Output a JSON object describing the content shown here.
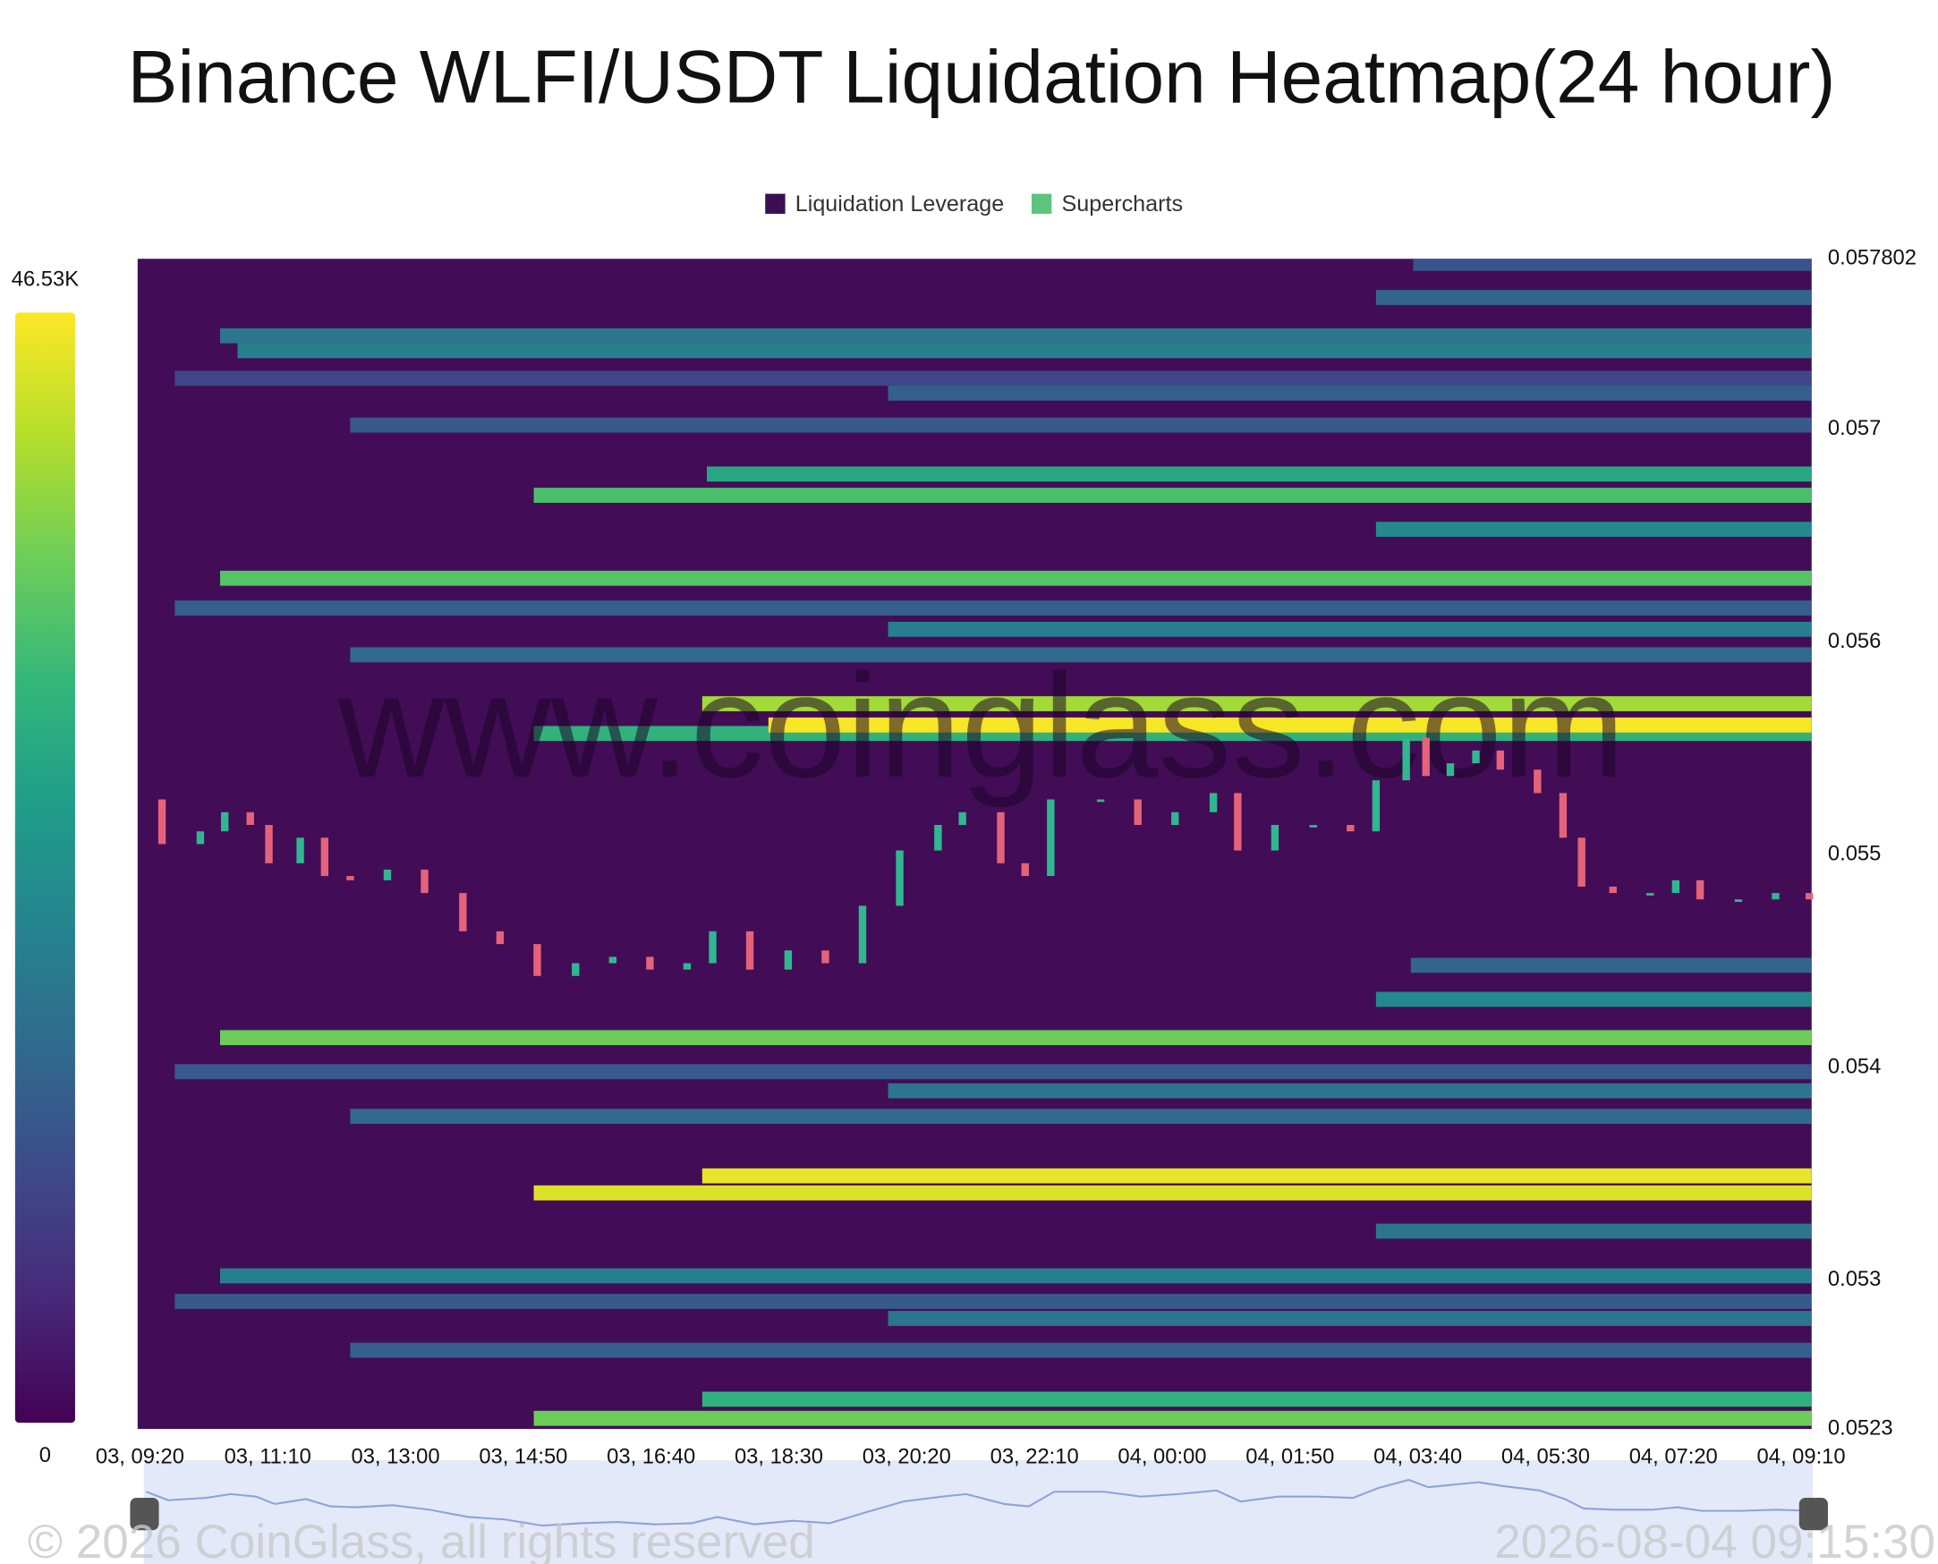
{
  "chart_data": {
    "type": "heatmap",
    "title": "Binance WLFI/USDT Liquidation Heatmap(24 hour)",
    "legend": [
      {
        "name": "Liquidation Leverage",
        "color": "#3b0f53"
      },
      {
        "name": "Supercharts",
        "color": "#5ec47d"
      }
    ],
    "watermark": "www.coinglass.com",
    "copyright": "© 2026 CoinGlass, all rights reserved",
    "timestamp": "2026-08-04 09:15:30",
    "background": "#420d56",
    "up_color": "#2fb890",
    "down_color": "#e4637a",
    "ylim": [
      0.0523,
      0.057802
    ],
    "yticks": [
      0.0523,
      0.053,
      0.054,
      0.055,
      0.056,
      0.057,
      0.057802
    ],
    "xlim": [
      -2,
      1439
    ],
    "xticks": [
      {
        "value": 0,
        "label": "03, 09:20"
      },
      {
        "value": 110,
        "label": "03, 11:10"
      },
      {
        "value": 220,
        "label": "03, 13:00"
      },
      {
        "value": 330,
        "label": "03, 14:50"
      },
      {
        "value": 440,
        "label": "03, 16:40"
      },
      {
        "value": 550,
        "label": "03, 18:30"
      },
      {
        "value": 660,
        "label": "03, 20:20"
      },
      {
        "value": 770,
        "label": "03, 22:10"
      },
      {
        "value": 880,
        "label": "04, 00:00"
      },
      {
        "value": 990,
        "label": "04, 01:50"
      },
      {
        "value": 1100,
        "label": "04, 03:40"
      },
      {
        "value": 1210,
        "label": "04, 05:30"
      },
      {
        "value": 1320,
        "label": "04, 07:20"
      },
      {
        "value": 1430,
        "label": "04, 09:10"
      }
    ],
    "colorbar": {
      "lim": [
        0,
        46530
      ],
      "ticks": [
        {
          "value": 46530,
          "label": "46.53K"
        },
        0
      ]
    },
    "bands": [
      {
        "price": 0.05778,
        "start": 1096,
        "value": 12000
      },
      {
        "price": 0.05762,
        "start": 1064,
        "value": 15000
      },
      {
        "price": 0.05744,
        "start": 69,
        "value": 18000
      },
      {
        "price": 0.05737,
        "start": 84,
        "value": 20000
      },
      {
        "price": 0.05724,
        "start": 30,
        "value": 10000
      },
      {
        "price": 0.05717,
        "start": 644,
        "value": 14000
      },
      {
        "price": 0.05702,
        "start": 181,
        "value": 13000
      },
      {
        "price": 0.05679,
        "start": 488,
        "value": 28000
      },
      {
        "price": 0.05669,
        "start": 339,
        "value": 33000
      },
      {
        "price": 0.05653,
        "start": 1064,
        "value": 22000
      },
      {
        "price": 0.0563,
        "start": 69,
        "value": 34000
      },
      {
        "price": 0.05616,
        "start": 30,
        "value": 14000
      },
      {
        "price": 0.05606,
        "start": 644,
        "value": 20000
      },
      {
        "price": 0.05594,
        "start": 181,
        "value": 16000
      },
      {
        "price": 0.05571,
        "start": 484,
        "value": 40000
      },
      {
        "price": 0.05557,
        "start": 339,
        "value": 30000
      },
      {
        "price": 0.05561,
        "start": 541,
        "value": 46000
      },
      {
        "price": 0.05448,
        "start": 1094,
        "value": 15000
      },
      {
        "price": 0.05432,
        "start": 1064,
        "value": 22000
      },
      {
        "price": 0.05414,
        "start": 69,
        "value": 36000
      },
      {
        "price": 0.05398,
        "start": 30,
        "value": 13000
      },
      {
        "price": 0.05389,
        "start": 644,
        "value": 18000
      },
      {
        "price": 0.05377,
        "start": 181,
        "value": 16000
      },
      {
        "price": 0.05341,
        "start": 339,
        "value": 44000
      },
      {
        "price": 0.05349,
        "start": 484,
        "value": 45000
      },
      {
        "price": 0.05323,
        "start": 1064,
        "value": 18000
      },
      {
        "price": 0.05302,
        "start": 69,
        "value": 20000
      },
      {
        "price": 0.0529,
        "start": 30,
        "value": 13000
      },
      {
        "price": 0.05282,
        "start": 644,
        "value": 18000
      },
      {
        "price": 0.05267,
        "start": 181,
        "value": 14000
      },
      {
        "price": 0.05235,
        "start": 339,
        "value": 36000
      },
      {
        "price": 0.05244,
        "start": 484,
        "value": 30000
      }
    ],
    "price": {
      "x": [
        0,
        19,
        52,
        73,
        95,
        111,
        138,
        159,
        181,
        213,
        245,
        278,
        310,
        342,
        375,
        407,
        439,
        471,
        493,
        525,
        558,
        590,
        622,
        654,
        687,
        708,
        741,
        762,
        784,
        827,
        859,
        891,
        924,
        945,
        977,
        1010,
        1042,
        1064,
        1090,
        1107,
        1128,
        1150,
        1171,
        1203,
        1225,
        1241,
        1268,
        1300,
        1322,
        1343,
        1376,
        1408,
        1437
      ],
      "values": [
        0.05526,
        0.05505,
        0.05511,
        0.0552,
        0.05514,
        0.05496,
        0.05508,
        0.0549,
        0.05488,
        0.05493,
        0.05482,
        0.05464,
        0.05458,
        0.05443,
        0.05449,
        0.05452,
        0.05446,
        0.05449,
        0.05464,
        0.05446,
        0.05455,
        0.05449,
        0.05476,
        0.05502,
        0.05514,
        0.0552,
        0.05496,
        0.0549,
        0.05526,
        0.05526,
        0.05514,
        0.0552,
        0.05529,
        0.05502,
        0.05514,
        0.05514,
        0.05511,
        0.05535,
        0.05555,
        0.05537,
        0.05543,
        0.05549,
        0.0554,
        0.05529,
        0.05508,
        0.05485,
        0.05482,
        0.05482,
        0.05488,
        0.05479,
        0.05479,
        0.05482,
        0.05479
      ]
    }
  }
}
